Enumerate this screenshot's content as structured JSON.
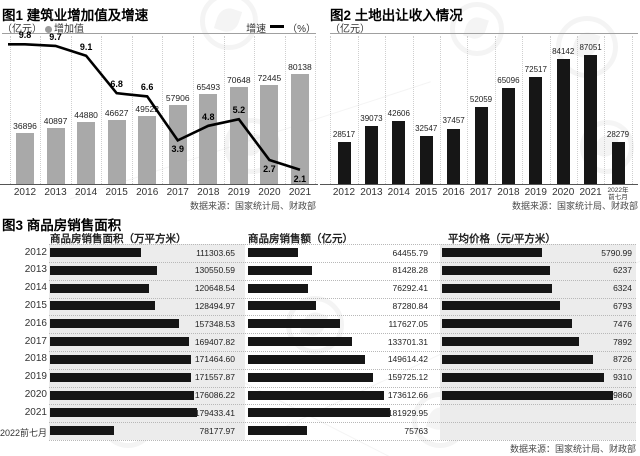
{
  "source_note": "数据来源：国家统计局、财政部",
  "colors": {
    "bar_gray": "#a9a9a9",
    "bar_black": "#161616",
    "line_black": "#000000",
    "panel_bg": "#ececec"
  },
  "charts": {
    "chart1": {
      "title": "图1 建筑业增加值及增速",
      "unit_left": "（亿元）",
      "legend_bar": "增加值",
      "legend_line": "增速",
      "legend_line_unit": "（%）"
    },
    "chart2": {
      "title": "图2 土地出让收入情况",
      "unit": "（亿元）"
    },
    "chart3": {
      "title": "图3 商品房销售面积",
      "headers": [
        "商品房销售面积（万平方米）",
        "商品房销售额（亿元）",
        "平均价格（元/平方米）"
      ]
    }
  },
  "chart_data": [
    {
      "type": "bar",
      "title": "图1 建筑业增加值及增速",
      "legend_position": "top",
      "grid": "vertical-dotted",
      "categories": [
        "2012",
        "2013",
        "2014",
        "2015",
        "2016",
        "2017",
        "2018",
        "2019",
        "2020",
        "2021"
      ],
      "series": [
        {
          "name": "增加值",
          "kind": "bar",
          "unit": "亿元",
          "values": [
            36896,
            40897,
            44880,
            46627,
            49522,
            57906,
            65493,
            70648,
            72445,
            80138
          ],
          "labels": [
            "36896",
            "40897",
            "44880",
            "46627",
            "49522",
            "57906",
            "65493",
            "70648",
            "72445",
            "80138"
          ]
        },
        {
          "name": "增速",
          "kind": "line",
          "unit": "%",
          "values": [
            9.8,
            9.7,
            9.1,
            6.8,
            6.6,
            3.9,
            4.8,
            5.2,
            2.7,
            2.1
          ],
          "labels": [
            "9.8",
            "9.7",
            "9.1",
            "6.8",
            "6.6",
            "3.9",
            "4.8",
            "5.2",
            "2.7",
            "2.1"
          ],
          "label_positions": [
            "above",
            "above",
            "above",
            "above",
            "above",
            "below",
            "above",
            "above",
            "below",
            "below"
          ]
        }
      ]
    },
    {
      "type": "bar",
      "title": "图2 土地出让收入情况",
      "unit": "亿元",
      "grid": "vertical-dotted",
      "categories": [
        "2012",
        "2013",
        "2014",
        "2015",
        "2016",
        "2017",
        "2018",
        "2019",
        "2020",
        "2021",
        "2022年前七月"
      ],
      "values": [
        28517,
        39073,
        42606,
        32547,
        37457,
        52059,
        65096,
        72517,
        84142,
        87051,
        28279
      ],
      "labels": [
        "28517",
        "39073",
        "42606",
        "32547",
        "37457",
        "52059",
        "65096",
        "72517",
        "84142",
        "87051",
        "28279"
      ]
    },
    {
      "type": "bar",
      "orientation": "horizontal",
      "title": "图3 商品房销售面积",
      "categories": [
        "2012",
        "2013",
        "2014",
        "2015",
        "2016",
        "2017",
        "2018",
        "2019",
        "2020",
        "2021",
        "2022前七月"
      ],
      "series": [
        {
          "name": "商品房销售面积（万平方米）",
          "values": [
            111303.65,
            130550.59,
            120648.54,
            128494.97,
            157348.53,
            169407.82,
            171464.6,
            171557.87,
            176086.22,
            179433.41,
            78177.97
          ],
          "labels": [
            "111303.65",
            "130550.59",
            "120648.54",
            "128494.97",
            "157348.53",
            "169407.82",
            "171464.60",
            "171557.87",
            "176086.22",
            "179433.41",
            "78177.97"
          ]
        },
        {
          "name": "商品房销售额（亿元）",
          "values": [
            64455.79,
            81428.28,
            76292.41,
            87280.84,
            117627.05,
            133701.31,
            149614.42,
            159725.12,
            173612.66,
            181929.95,
            75763
          ],
          "labels": [
            "64455.79",
            "81428.28",
            "76292.41",
            "87280.84",
            "117627.05",
            "133701.31",
            "149614.42",
            "159725.12",
            "173612.66",
            "181929.95",
            "75763"
          ]
        },
        {
          "name": "平均价格（元/平方米）",
          "values": [
            5790.99,
            6237,
            6324,
            6793,
            7476,
            7892,
            8726,
            9310,
            9860,
            null,
            null
          ],
          "labels": [
            "5790.99",
            "6237",
            "6324",
            "6793",
            "7476",
            "7892",
            "8726",
            "9310",
            "9860",
            "",
            ""
          ]
        }
      ]
    }
  ]
}
